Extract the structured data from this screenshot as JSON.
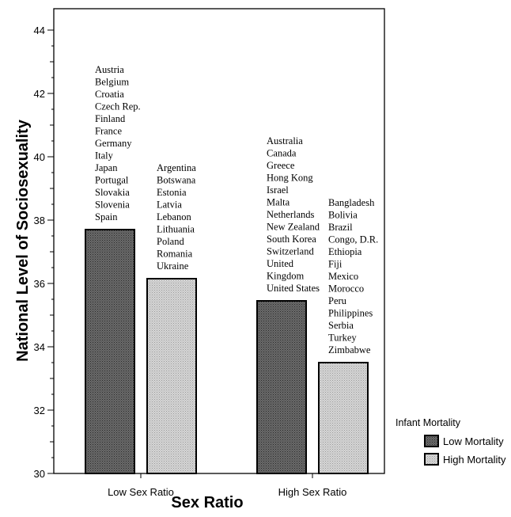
{
  "chart_data": {
    "type": "bar",
    "xlabel": "Sex Ratio",
    "ylabel": "National Level of Sociosexuality",
    "ylim": [
      30,
      45
    ],
    "y_ticks": [
      30,
      32,
      34,
      36,
      38,
      40,
      42,
      44
    ],
    "categories": [
      "Low Sex Ratio",
      "High Sex Ratio"
    ],
    "legend_title": "Infant Mortality",
    "legend_placement": "bottom-right",
    "series": [
      {
        "name": "Low Mortality",
        "color": "#5a5a5a",
        "values": [
          37.7,
          35.45
        ],
        "countries": [
          [
            "Austria",
            "Belgium",
            "Croatia",
            "Czech Rep.",
            "Finland",
            "France",
            "Germany",
            "Italy",
            "Japan",
            "Portugal",
            "Slovakia",
            "Slovenia",
            "Spain"
          ],
          [
            "Australia",
            "Canada",
            "Greece",
            "Hong Kong",
            "Israel",
            "Malta",
            "Netherlands",
            "New Zealand",
            "South Korea",
            "Switzerland",
            "United",
            "Kingdom",
            "United States"
          ]
        ]
      },
      {
        "name": "High Mortality",
        "color": "#c8c8c8",
        "values": [
          36.15,
          33.5
        ],
        "countries": [
          [
            "Argentina",
            "Botswana",
            "Estonia",
            "Latvia",
            "Lebanon",
            "Lithuania",
            "Poland",
            "Romania",
            "Ukraine"
          ],
          [
            "Bangladesh",
            "Bolivia",
            "Brazil",
            "Congo, D.R.",
            "Ethiopia",
            "Fiji",
            "Mexico",
            "Morocco",
            "Peru",
            "Philippines",
            "Serbia",
            "Turkey",
            "Zimbabwe"
          ]
        ]
      }
    ]
  }
}
